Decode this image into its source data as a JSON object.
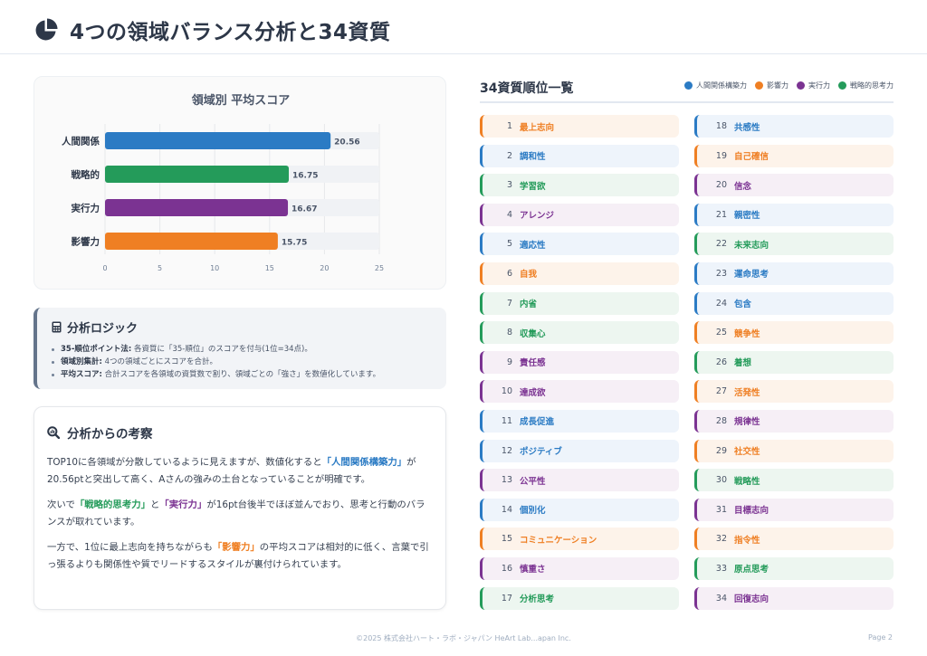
{
  "header": {
    "title": "4つの領域バランス分析と34資質"
  },
  "chart_data": {
    "type": "bar",
    "orientation": "horizontal",
    "title": "領域別 平均スコア",
    "categories": [
      "人間関係",
      "戦略的",
      "実行力",
      "影響力"
    ],
    "values": [
      20.56,
      16.75,
      16.67,
      15.75
    ],
    "value_labels": [
      "20.56",
      "16.75",
      "16.67",
      "15.75"
    ],
    "colors": [
      "#2b7bc4",
      "#249b5a",
      "#7b3392",
      "#ef7f23"
    ],
    "xlim": [
      0,
      25
    ],
    "xticks": [
      0,
      5,
      10,
      15,
      20,
      25
    ],
    "xtick_labels": [
      "0",
      "5",
      "10",
      "15",
      "20",
      "25"
    ],
    "grid": true
  },
  "logic": {
    "title": "分析ロジック",
    "items": [
      {
        "label": "35-順位ポイント法:",
        "text": " 各資質に「35-順位」のスコアを付与(1位=34点)。"
      },
      {
        "label": "領域別集計:",
        "text": " 4つの領域ごとにスコアを合計。"
      },
      {
        "label": "平均スコア:",
        "text": " 合計スコアを各領域の資質数で割り、領域ごとの「強さ」を数値化しています。"
      }
    ]
  },
  "insight": {
    "title": "分析からの考察",
    "p1_a": "TOP10に各領域が分散しているように見えますが、数値化すると",
    "p1_hl": "「人間関係構築力」",
    "p1_b": "が20.56ptと突出して高く、Aさんの強みの土台となっていることが明確です。",
    "p2_a": "次いで",
    "p2_hl1": "「戦略的思考力」",
    "p2_b": "と",
    "p2_hl2": "「実行力」",
    "p2_c": "が16pt台後半でほぼ並んでおり、思考と行動のバランスが取れています。",
    "p3_a": "一方で、1位に最上志向を持ちながらも",
    "p3_hl": "「影響力」",
    "p3_b": "の平均スコアは相対的に低く、言葉で引っ張るよりも関係性や質でリードするスタイルが裏付けられています。"
  },
  "ranking": {
    "title": "34資質順位一覧",
    "legend": [
      {
        "label": "人間関係構築力",
        "color": "#2b7bc4"
      },
      {
        "label": "影響力",
        "color": "#ef7f23"
      },
      {
        "label": "実行力",
        "color": "#7b3392"
      },
      {
        "label": "戦略的思考力",
        "color": "#249b5a"
      }
    ],
    "items": [
      {
        "rank": "1",
        "name": "最上志向",
        "cat": "inf"
      },
      {
        "rank": "2",
        "name": "調和性",
        "cat": "rel"
      },
      {
        "rank": "3",
        "name": "学習欲",
        "cat": "str"
      },
      {
        "rank": "4",
        "name": "アレンジ",
        "cat": "exe"
      },
      {
        "rank": "5",
        "name": "適応性",
        "cat": "rel"
      },
      {
        "rank": "6",
        "name": "自我",
        "cat": "inf"
      },
      {
        "rank": "7",
        "name": "内省",
        "cat": "str"
      },
      {
        "rank": "8",
        "name": "収集心",
        "cat": "str"
      },
      {
        "rank": "9",
        "name": "責任感",
        "cat": "exe"
      },
      {
        "rank": "10",
        "name": "達成欲",
        "cat": "exe"
      },
      {
        "rank": "11",
        "name": "成長促進",
        "cat": "rel"
      },
      {
        "rank": "12",
        "name": "ポジティブ",
        "cat": "rel"
      },
      {
        "rank": "13",
        "name": "公平性",
        "cat": "exe"
      },
      {
        "rank": "14",
        "name": "個別化",
        "cat": "rel"
      },
      {
        "rank": "15",
        "name": "コミュニケーション",
        "cat": "inf"
      },
      {
        "rank": "16",
        "name": "慎重さ",
        "cat": "exe"
      },
      {
        "rank": "17",
        "name": "分析思考",
        "cat": "str"
      },
      {
        "rank": "18",
        "name": "共感性",
        "cat": "rel"
      },
      {
        "rank": "19",
        "name": "自己確信",
        "cat": "inf"
      },
      {
        "rank": "20",
        "name": "信念",
        "cat": "exe"
      },
      {
        "rank": "21",
        "name": "親密性",
        "cat": "rel"
      },
      {
        "rank": "22",
        "name": "未来志向",
        "cat": "str"
      },
      {
        "rank": "23",
        "name": "運命思考",
        "cat": "rel"
      },
      {
        "rank": "24",
        "name": "包含",
        "cat": "rel"
      },
      {
        "rank": "25",
        "name": "競争性",
        "cat": "inf"
      },
      {
        "rank": "26",
        "name": "着想",
        "cat": "str"
      },
      {
        "rank": "27",
        "name": "活発性",
        "cat": "inf"
      },
      {
        "rank": "28",
        "name": "規律性",
        "cat": "exe"
      },
      {
        "rank": "29",
        "name": "社交性",
        "cat": "inf"
      },
      {
        "rank": "30",
        "name": "戦略性",
        "cat": "str"
      },
      {
        "rank": "31",
        "name": "目標志向",
        "cat": "exe"
      },
      {
        "rank": "32",
        "name": "指令性",
        "cat": "inf"
      },
      {
        "rank": "33",
        "name": "原点思考",
        "cat": "str"
      },
      {
        "rank": "34",
        "name": "回復志向",
        "cat": "exe"
      }
    ]
  },
  "footer": {
    "copyright": "©2025 株式会社ハート・ラボ・ジャパン HeArt Lab...apan Inc.",
    "page": "Page 2"
  }
}
